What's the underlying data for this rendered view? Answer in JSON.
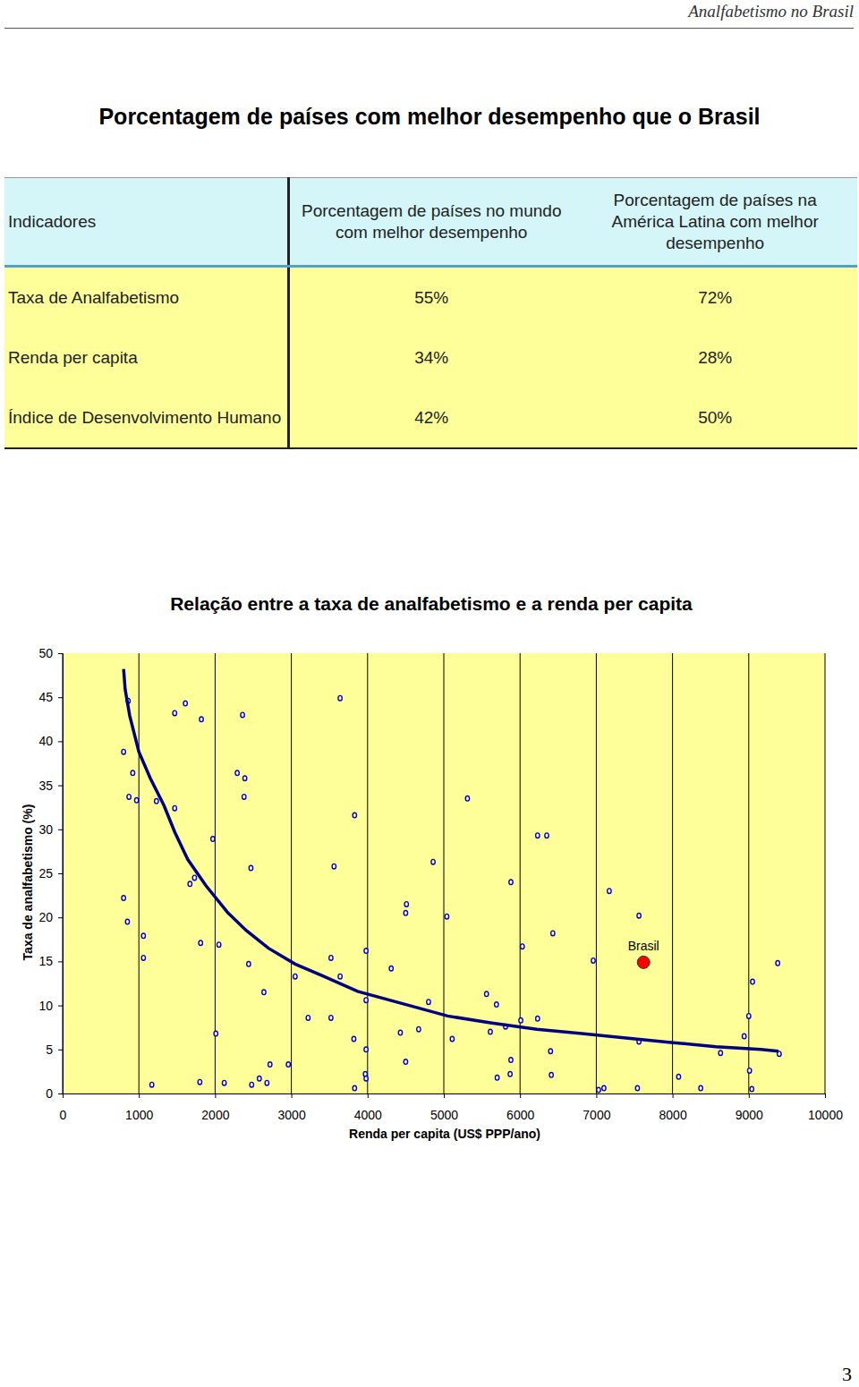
{
  "header": {
    "running_head": "Analfabetismo no Brasil",
    "title": "Porcentagem de países com melhor desempenho que o Brasil"
  },
  "table": {
    "header": [
      "Indicadores",
      "Porcentagem de países no mundo com melhor desempenho",
      "Porcentagem de países na América Latina com melhor desempenho"
    ],
    "rows": [
      [
        "Taxa de Analfabetismo",
        "55%",
        "72%"
      ],
      [
        "Renda per capita",
        "34%",
        "28%"
      ],
      [
        "Índice de Desenvolvimento Humano",
        "42%",
        "50%"
      ]
    ]
  },
  "chart_data": {
    "type": "scatter",
    "title": "Relação entre a taxa de analfabetismo e a renda per capita",
    "x_label": "Renda per capita (US$ PPP/ano)",
    "y_label": "Taxa de analfabetismo (%)",
    "xlim": [
      0,
      10000
    ],
    "ylim": [
      0,
      50
    ],
    "xticks": [
      0,
      1000,
      2000,
      3000,
      4000,
      5000,
      6000,
      7000,
      8000,
      9000,
      10000
    ],
    "yticks": [
      0,
      5,
      10,
      15,
      20,
      25,
      30,
      35,
      40,
      45,
      50
    ],
    "grid": true,
    "series": [
      {
        "type": "scatter",
        "marker": "circle-open",
        "color": "#0000cc",
        "x": [
          860,
          1470,
          1610,
          1820,
          2360,
          3640,
          800,
          920,
          870,
          970,
          1230,
          1470,
          1970,
          2290,
          2390,
          2380,
          3830,
          5310,
          6230,
          6350,
          800,
          850,
          1060,
          1060,
          1670,
          1730,
          1810,
          2050,
          2470,
          2440,
          3560,
          4860,
          4510,
          4500,
          5040,
          5880,
          7170,
          7560,
          6430,
          6030,
          3980,
          3520,
          4310,
          3050,
          3640,
          2640,
          6960,
          9050,
          9380,
          5560,
          4800,
          5690,
          3220,
          3520,
          3980,
          6230,
          6010,
          9000,
          2010,
          3820,
          4430,
          4670,
          5110,
          5610,
          5810,
          8940,
          7560,
          6400,
          3980,
          8630,
          9400,
          4500,
          5880,
          2960,
          2720,
          2580,
          2680,
          2480,
          2120,
          1800,
          1170,
          3970,
          3980,
          3830,
          5700,
          5870,
          6410,
          8080,
          9010,
          7100,
          7030,
          7540,
          8370,
          9040
        ],
        "values": [
          44.6,
          43.2,
          44.3,
          42.5,
          43.0,
          44.9,
          38.8,
          36.4,
          33.7,
          33.3,
          33.2,
          32.4,
          28.9,
          36.4,
          35.8,
          33.7,
          31.6,
          33.5,
          29.3,
          29.3,
          22.2,
          19.5,
          17.9,
          15.4,
          23.8,
          24.5,
          17.1,
          16.9,
          25.6,
          14.7,
          25.8,
          26.3,
          21.5,
          20.5,
          20.1,
          24.0,
          23.0,
          20.2,
          18.2,
          16.7,
          16.2,
          15.4,
          14.2,
          13.3,
          13.3,
          11.5,
          15.1,
          12.7,
          14.8,
          11.3,
          10.4,
          10.1,
          8.6,
          8.6,
          10.6,
          8.5,
          8.3,
          8.8,
          6.8,
          6.2,
          6.9,
          7.3,
          6.2,
          7.0,
          7.6,
          6.5,
          5.9,
          4.8,
          5.0,
          4.6,
          4.5,
          3.6,
          3.8,
          3.3,
          3.3,
          1.7,
          1.2,
          1.0,
          1.2,
          1.3,
          1.0,
          2.2,
          1.7,
          0.6,
          1.8,
          2.2,
          2.1,
          1.9,
          2.6,
          0.6,
          0.4,
          0.6,
          0.6,
          0.5
        ]
      },
      {
        "type": "line",
        "color": "#000080",
        "x": [
          800,
          820,
          880,
          1000,
          1150,
          1330,
          1470,
          1640,
          1880,
          2170,
          2410,
          2700,
          3050,
          3400,
          3870,
          4460,
          5050,
          5630,
          6220,
          6810,
          7390,
          7980,
          8570,
          9160,
          9390
        ],
        "values": [
          48.2,
          45.9,
          42.9,
          38.8,
          35.8,
          32.7,
          29.7,
          26.6,
          23.6,
          20.5,
          18.5,
          16.5,
          14.7,
          13.4,
          11.6,
          10.2,
          8.8,
          8.0,
          7.3,
          6.8,
          6.3,
          5.8,
          5.3,
          5.0,
          4.8
        ]
      },
      {
        "type": "scatter",
        "name": "Brasil",
        "marker": "circle",
        "color": "#ff0000",
        "x": [
          7620
        ],
        "values": [
          14.9
        ]
      }
    ]
  },
  "page_number": "3"
}
